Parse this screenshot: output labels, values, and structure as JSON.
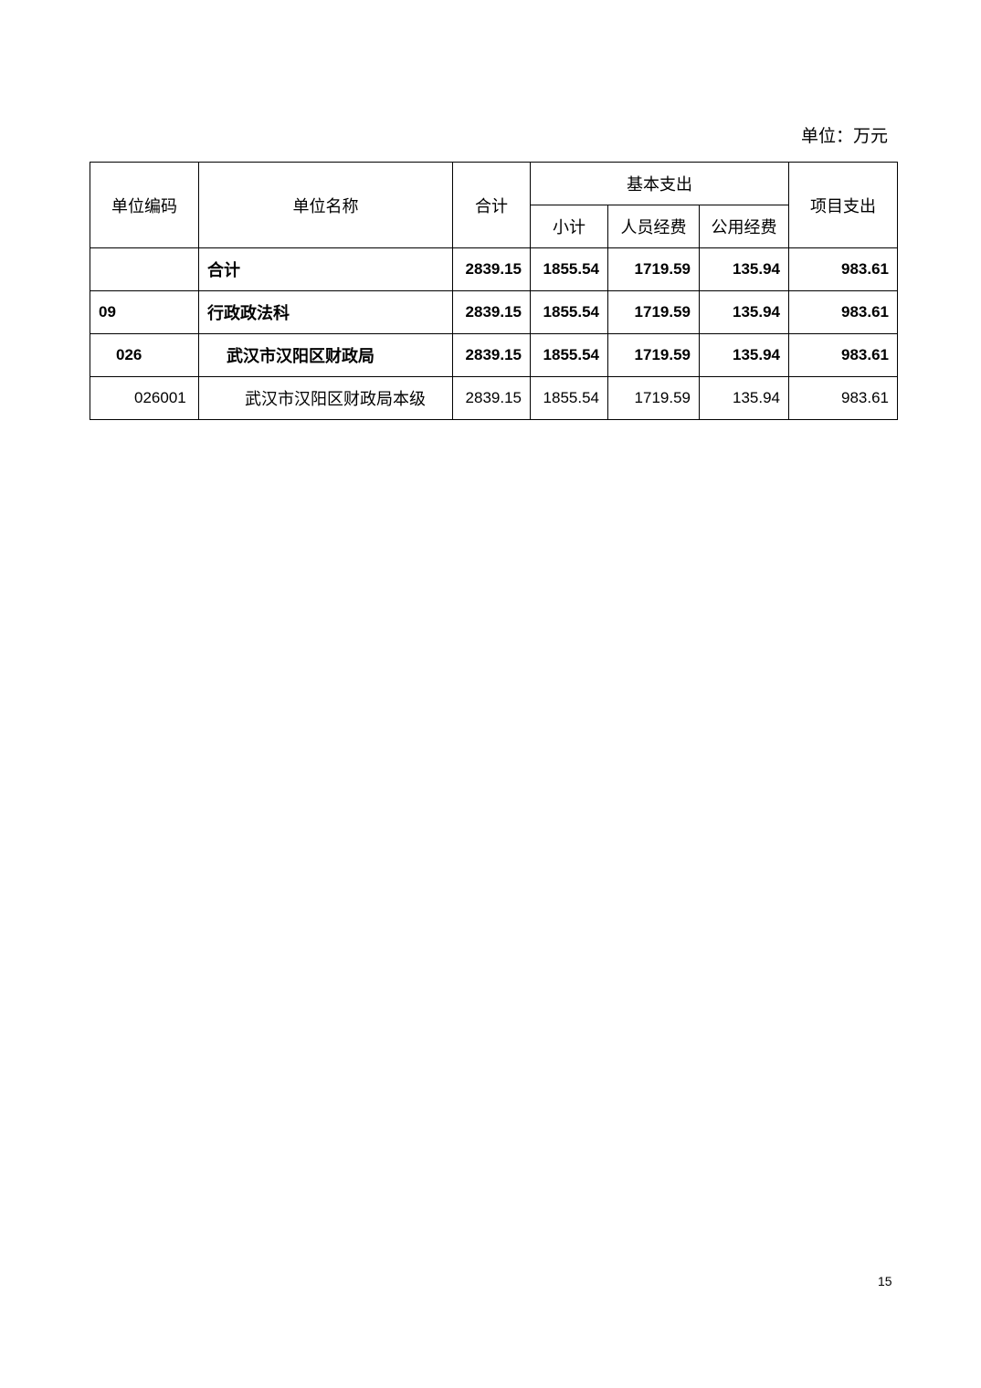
{
  "unit_label": "单位：万元",
  "table": {
    "headers": {
      "code": "单位编码",
      "name": "单位名称",
      "total": "合计",
      "basic": "基本支出",
      "subtotal": "小计",
      "personnel": "人员经费",
      "public": "公用经费",
      "project": "项目支出"
    },
    "rows": [
      {
        "code": "",
        "name": "合计",
        "total": "2839.15",
        "subtotal": "1855.54",
        "personnel": "1719.59",
        "public": "135.94",
        "project": "983.61"
      },
      {
        "code": "09",
        "name": "行政政法科",
        "total": "2839.15",
        "subtotal": "1855.54",
        "personnel": "1719.59",
        "public": "135.94",
        "project": "983.61"
      },
      {
        "code": "026",
        "name": "武汉市汉阳区财政局",
        "total": "2839.15",
        "subtotal": "1855.54",
        "personnel": "1719.59",
        "public": "135.94",
        "project": "983.61"
      },
      {
        "code": "026001",
        "name": "武汉市汉阳区财政局本级",
        "total": "2839.15",
        "subtotal": "1855.54",
        "personnel": "1719.59",
        "public": "135.94",
        "project": "983.61"
      }
    ]
  },
  "page_number": "15"
}
